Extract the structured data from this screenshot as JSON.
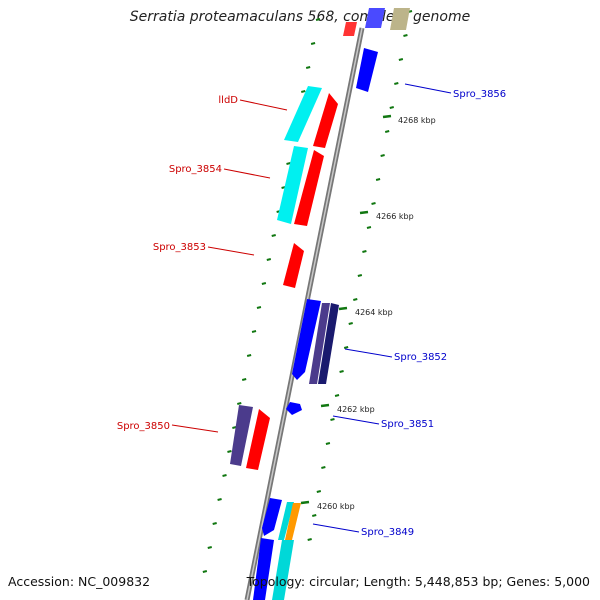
{
  "title": "Serratia proteamaculans 568, complete genome",
  "accession_label": "Accession: NC_009832",
  "summary_label": "Topology: circular; Length: 5,448,853 bp; Genes: 5,000",
  "ticks": [
    {
      "label": "4268 kbp"
    },
    {
      "label": "4266 kbp"
    },
    {
      "label": "4264 kbp"
    },
    {
      "label": "4262 kbp"
    },
    {
      "label": "4260 kbp"
    }
  ],
  "genes_left": [
    {
      "label": "lldD"
    },
    {
      "label": "Spro_3854"
    },
    {
      "label": "Spro_3853"
    },
    {
      "label": "Spro_3850"
    }
  ],
  "genes_right": [
    {
      "label": "Spro_3856"
    },
    {
      "label": "Spro_3852"
    },
    {
      "label": "Spro_3851"
    },
    {
      "label": "Spro_3849"
    }
  ],
  "colors": {
    "forward_strand": "#ff0000",
    "reverse_strand": "#0000ff",
    "cyan_feature": "#00ffff",
    "purple_feature": "#4b3b8c",
    "navy_feature": "#1a1a6e",
    "orange_feature": "#ff9900",
    "backbone": "#888888",
    "tick_marks": "#117711",
    "left_label": "#cc0000",
    "right_label": "#0000cc"
  }
}
